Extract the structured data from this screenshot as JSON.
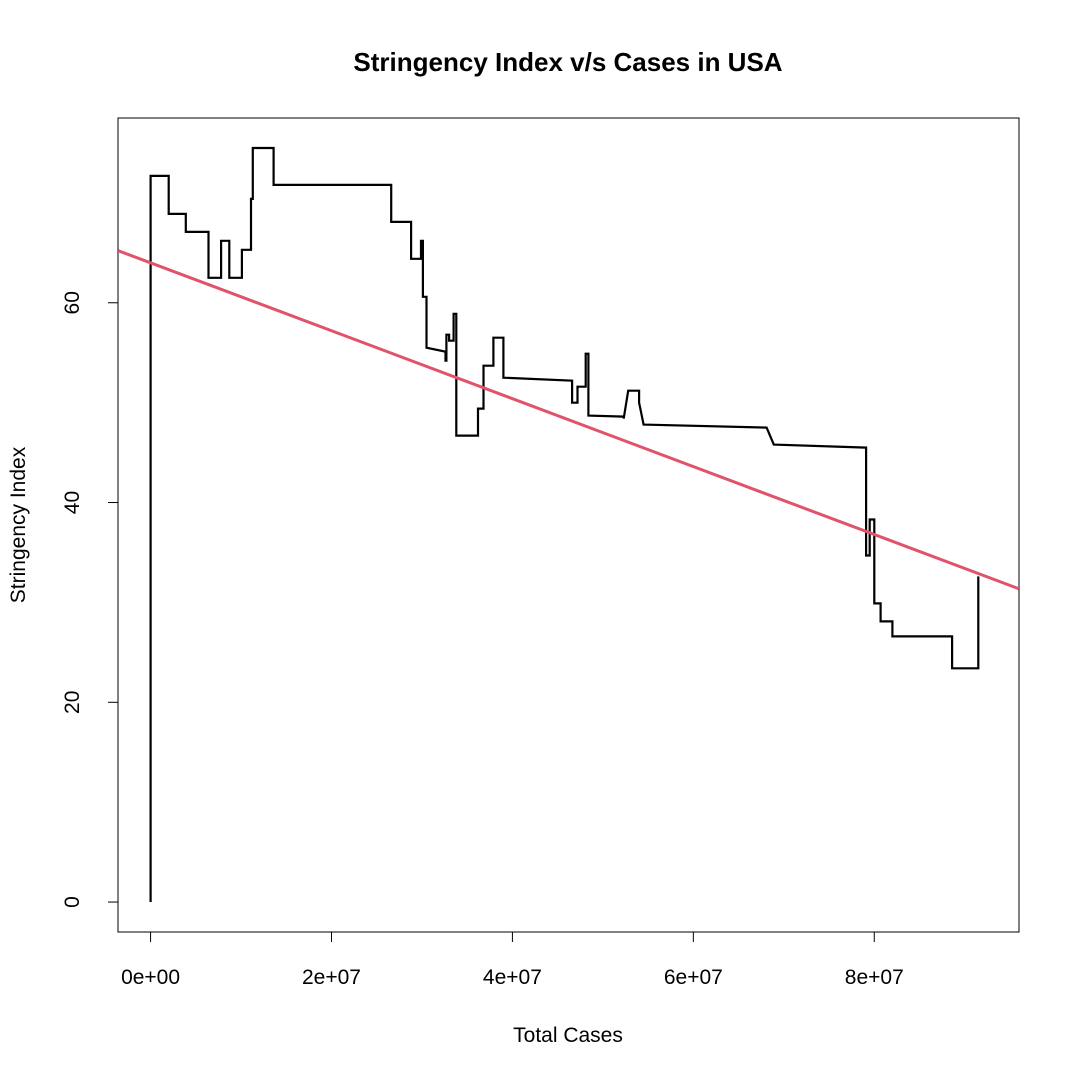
{
  "chart_data": {
    "type": "line",
    "title": "Stringency Index v/s Cases in USA",
    "xlabel": "Total Cases",
    "ylabel": "Stringency Index",
    "xlim": [
      -3600000,
      96000000
    ],
    "ylim": [
      -3000,
      78500
    ],
    "ylim_note": "",
    "x_ticks": [
      {
        "value": 0,
        "label": "0e+00"
      },
      {
        "value": 20000000,
        "label": "2e+07"
      },
      {
        "value": 40000000,
        "label": "4e+07"
      },
      {
        "value": 60000000,
        "label": "6e+07"
      },
      {
        "value": 80000000,
        "label": "8e+07"
      }
    ],
    "y_ticks": [
      {
        "value": 0,
        "label": "0"
      },
      {
        "value": 20,
        "label": "20"
      },
      {
        "value": 40,
        "label": "40"
      },
      {
        "value": 60,
        "label": "60"
      }
    ],
    "y_range": [
      -3,
      78.5
    ],
    "grid": false,
    "series": [
      {
        "color": "#000000",
        "points": [
          [
            0,
            0
          ],
          [
            0,
            72.7
          ],
          [
            2000000,
            72.7
          ],
          [
            2000000,
            68.9
          ],
          [
            3900000,
            68.9
          ],
          [
            3900000,
            67.1
          ],
          [
            6400000,
            67.1
          ],
          [
            6400000,
            62.5
          ],
          [
            7800000,
            62.5
          ],
          [
            7800000,
            66.2
          ],
          [
            8700000,
            66.2
          ],
          [
            8700000,
            62.5
          ],
          [
            10100000,
            62.5
          ],
          [
            10100000,
            65.3
          ],
          [
            11100000,
            65.3
          ],
          [
            11100000,
            70.4
          ],
          [
            11300000,
            70.4
          ],
          [
            11300000,
            75.5
          ],
          [
            13600000,
            75.5
          ],
          [
            13600000,
            71.8
          ],
          [
            26600000,
            71.8
          ],
          [
            26600000,
            68.1
          ],
          [
            28800000,
            68.1
          ],
          [
            28800000,
            64.4
          ],
          [
            29900000,
            64.4
          ],
          [
            29900000,
            66.2
          ],
          [
            30100000,
            66.2
          ],
          [
            30100000,
            60.6
          ],
          [
            30500000,
            60.6
          ],
          [
            30500000,
            55.5
          ],
          [
            32600000,
            55.1
          ],
          [
            32600000,
            54.2
          ],
          [
            32700000,
            54.2
          ],
          [
            32700000,
            56.8
          ],
          [
            33000000,
            56.8
          ],
          [
            33000000,
            56.2
          ],
          [
            33500000,
            56.2
          ],
          [
            33500000,
            58.9
          ],
          [
            33800000,
            58.9
          ],
          [
            33800000,
            46.7
          ],
          [
            36200000,
            46.7
          ],
          [
            36200000,
            49.4
          ],
          [
            36800000,
            49.4
          ],
          [
            36800000,
            53.7
          ],
          [
            37900000,
            53.7
          ],
          [
            37900000,
            56.5
          ],
          [
            39000000,
            56.5
          ],
          [
            39000000,
            52.5
          ],
          [
            46600000,
            52.2
          ],
          [
            46600000,
            50.0
          ],
          [
            47200000,
            50.0
          ],
          [
            47200000,
            51.6
          ],
          [
            48100000,
            51.6
          ],
          [
            48100000,
            54.9
          ],
          [
            48400000,
            54.9
          ],
          [
            48400000,
            48.7
          ],
          [
            52300000,
            48.6
          ],
          [
            52300000,
            48.4
          ],
          [
            52800000,
            51.2
          ],
          [
            54000000,
            51.2
          ],
          [
            54000000,
            50.0
          ],
          [
            54500000,
            47.8
          ],
          [
            68100000,
            47.5
          ],
          [
            68900000,
            45.8
          ],
          [
            79100000,
            45.5
          ],
          [
            79100000,
            34.7
          ],
          [
            79500000,
            34.7
          ],
          [
            79500000,
            38.3
          ],
          [
            80000000,
            38.3
          ],
          [
            80000000,
            29.9
          ],
          [
            80700000,
            29.9
          ],
          [
            80700000,
            28.1
          ],
          [
            82000000,
            28.1
          ],
          [
            82000000,
            26.6
          ],
          [
            88600000,
            26.6
          ],
          [
            88600000,
            23.4
          ],
          [
            91500000,
            23.4
          ],
          [
            91500000,
            32.6
          ]
        ]
      },
      {
        "color": "#df536b",
        "type": "abline",
        "intercept": 64.0,
        "slope": -3.4e-07
      }
    ]
  }
}
